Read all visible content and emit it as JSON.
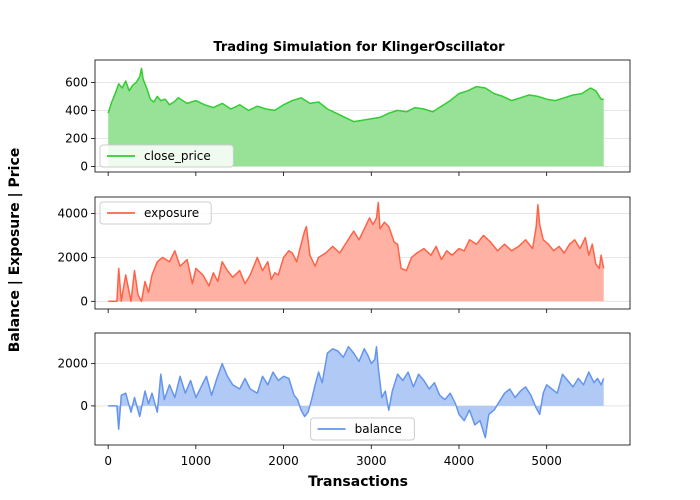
{
  "chart_data": {
    "type": "line",
    "title": "Trading Simulation for KlingerOscillator",
    "xlabel": "Transactions",
    "ylabel": "Balance | Exposure | Price",
    "xlim": [
      -150,
      5950
    ],
    "x_ticks": [
      0,
      1000,
      2000,
      3000,
      4000,
      5000
    ],
    "grid": "horizontal",
    "panels": [
      {
        "series_name": "close_price",
        "color": "#32cd32",
        "fill_color": "#98e298",
        "legend_position": "lower-left",
        "ylim": [
          -40,
          760
        ],
        "y_ticks": [
          0,
          200,
          400,
          600
        ],
        "points": [
          [
            0,
            380
          ],
          [
            40,
            460
          ],
          [
            80,
            520
          ],
          [
            120,
            590
          ],
          [
            160,
            560
          ],
          [
            200,
            610
          ],
          [
            240,
            540
          ],
          [
            280,
            580
          ],
          [
            320,
            600
          ],
          [
            360,
            640
          ],
          [
            380,
            700
          ],
          [
            400,
            620
          ],
          [
            440,
            560
          ],
          [
            480,
            480
          ],
          [
            520,
            460
          ],
          [
            560,
            500
          ],
          [
            600,
            470
          ],
          [
            650,
            480
          ],
          [
            700,
            440
          ],
          [
            750,
            460
          ],
          [
            800,
            490
          ],
          [
            850,
            470
          ],
          [
            900,
            450
          ],
          [
            1000,
            470
          ],
          [
            1100,
            440
          ],
          [
            1200,
            420
          ],
          [
            1300,
            450
          ],
          [
            1400,
            410
          ],
          [
            1500,
            440
          ],
          [
            1600,
            400
          ],
          [
            1700,
            430
          ],
          [
            1800,
            410
          ],
          [
            1900,
            400
          ],
          [
            2000,
            440
          ],
          [
            2100,
            470
          ],
          [
            2200,
            490
          ],
          [
            2300,
            450
          ],
          [
            2400,
            460
          ],
          [
            2500,
            410
          ],
          [
            2600,
            380
          ],
          [
            2700,
            350
          ],
          [
            2800,
            320
          ],
          [
            2900,
            330
          ],
          [
            3000,
            340
          ],
          [
            3100,
            350
          ],
          [
            3200,
            380
          ],
          [
            3300,
            400
          ],
          [
            3400,
            390
          ],
          [
            3500,
            420
          ],
          [
            3600,
            410
          ],
          [
            3700,
            390
          ],
          [
            3800,
            430
          ],
          [
            3900,
            470
          ],
          [
            4000,
            520
          ],
          [
            4100,
            540
          ],
          [
            4200,
            570
          ],
          [
            4300,
            560
          ],
          [
            4400,
            520
          ],
          [
            4500,
            500
          ],
          [
            4600,
            470
          ],
          [
            4700,
            490
          ],
          [
            4800,
            510
          ],
          [
            4900,
            500
          ],
          [
            5000,
            480
          ],
          [
            5100,
            470
          ],
          [
            5200,
            490
          ],
          [
            5300,
            510
          ],
          [
            5400,
            520
          ],
          [
            5500,
            560
          ],
          [
            5560,
            540
          ],
          [
            5620,
            480
          ],
          [
            5650,
            480
          ]
        ]
      },
      {
        "series_name": "exposure",
        "color": "#ff6347",
        "fill_color": "#ffb1a3",
        "legend_position": "upper-left",
        "ylim": [
          -350,
          4750
        ],
        "y_ticks": [
          0,
          2000,
          4000
        ],
        "points": [
          [
            0,
            0
          ],
          [
            100,
            0
          ],
          [
            120,
            1500
          ],
          [
            150,
            0
          ],
          [
            200,
            1200
          ],
          [
            260,
            0
          ],
          [
            300,
            1400
          ],
          [
            340,
            300
          ],
          [
            380,
            0
          ],
          [
            420,
            900
          ],
          [
            460,
            400
          ],
          [
            500,
            1200
          ],
          [
            560,
            1800
          ],
          [
            620,
            2000
          ],
          [
            700,
            1800
          ],
          [
            760,
            2300
          ],
          [
            820,
            1600
          ],
          [
            900,
            1900
          ],
          [
            960,
            800
          ],
          [
            1000,
            1500
          ],
          [
            1080,
            1200
          ],
          [
            1150,
            700
          ],
          [
            1200,
            1300
          ],
          [
            1250,
            900
          ],
          [
            1300,
            1800
          ],
          [
            1360,
            1400
          ],
          [
            1420,
            1100
          ],
          [
            1500,
            1400
          ],
          [
            1560,
            800
          ],
          [
            1620,
            1200
          ],
          [
            1700,
            2000
          ],
          [
            1760,
            1400
          ],
          [
            1820,
            1800
          ],
          [
            1860,
            1000
          ],
          [
            1900,
            1300
          ],
          [
            1940,
            1200
          ],
          [
            2000,
            2000
          ],
          [
            2060,
            2300
          ],
          [
            2100,
            2200
          ],
          [
            2150,
            1800
          ],
          [
            2200,
            2600
          ],
          [
            2240,
            3200
          ],
          [
            2260,
            3400
          ],
          [
            2300,
            2100
          ],
          [
            2360,
            1600
          ],
          [
            2400,
            2000
          ],
          [
            2480,
            2200
          ],
          [
            2560,
            2500
          ],
          [
            2640,
            2200
          ],
          [
            2720,
            2700
          ],
          [
            2800,
            3200
          ],
          [
            2860,
            2800
          ],
          [
            2920,
            3300
          ],
          [
            2980,
            3800
          ],
          [
            3020,
            3500
          ],
          [
            3060,
            3800
          ],
          [
            3080,
            4500
          ],
          [
            3100,
            3300
          ],
          [
            3150,
            3600
          ],
          [
            3200,
            3400
          ],
          [
            3260,
            2700
          ],
          [
            3300,
            2600
          ],
          [
            3340,
            1500
          ],
          [
            3400,
            1400
          ],
          [
            3460,
            2000
          ],
          [
            3520,
            2200
          ],
          [
            3600,
            2400
          ],
          [
            3680,
            2100
          ],
          [
            3740,
            2500
          ],
          [
            3800,
            1900
          ],
          [
            3860,
            2300
          ],
          [
            3920,
            2100
          ],
          [
            4000,
            2400
          ],
          [
            4060,
            2300
          ],
          [
            4120,
            2800
          ],
          [
            4200,
            2600
          ],
          [
            4280,
            3000
          ],
          [
            4360,
            2700
          ],
          [
            4440,
            2300
          ],
          [
            4520,
            2600
          ],
          [
            4600,
            2300
          ],
          [
            4680,
            2500
          ],
          [
            4760,
            2800
          ],
          [
            4840,
            2400
          ],
          [
            4880,
            3400
          ],
          [
            4900,
            4400
          ],
          [
            4920,
            3500
          ],
          [
            4960,
            2800
          ],
          [
            5020,
            2600
          ],
          [
            5080,
            2300
          ],
          [
            5140,
            2500
          ],
          [
            5200,
            2200
          ],
          [
            5260,
            2600
          ],
          [
            5320,
            2800
          ],
          [
            5380,
            2400
          ],
          [
            5440,
            2900
          ],
          [
            5480,
            2100
          ],
          [
            5520,
            2600
          ],
          [
            5560,
            1700
          ],
          [
            5600,
            1500
          ],
          [
            5620,
            2100
          ],
          [
            5650,
            1500
          ]
        ]
      },
      {
        "series_name": "balance",
        "color": "#6495ed",
        "fill_color": "#b1c9f5",
        "legend_position": "lower-center",
        "ylim": [
          -1850,
          3450
        ],
        "y_ticks": [
          0,
          2000
        ],
        "points": [
          [
            0,
            0
          ],
          [
            100,
            0
          ],
          [
            120,
            -1100
          ],
          [
            150,
            500
          ],
          [
            200,
            600
          ],
          [
            260,
            -300
          ],
          [
            300,
            400
          ],
          [
            360,
            -500
          ],
          [
            420,
            700
          ],
          [
            460,
            100
          ],
          [
            500,
            600
          ],
          [
            560,
            -300
          ],
          [
            600,
            1500
          ],
          [
            640,
            300
          ],
          [
            700,
            1000
          ],
          [
            760,
            400
          ],
          [
            820,
            1400
          ],
          [
            880,
            600
          ],
          [
            940,
            1200
          ],
          [
            1000,
            400
          ],
          [
            1060,
            900
          ],
          [
            1120,
            1400
          ],
          [
            1180,
            500
          ],
          [
            1240,
            1300
          ],
          [
            1300,
            2000
          ],
          [
            1360,
            1400
          ],
          [
            1420,
            1000
          ],
          [
            1500,
            800
          ],
          [
            1560,
            1300
          ],
          [
            1620,
            800
          ],
          [
            1700,
            600
          ],
          [
            1760,
            1400
          ],
          [
            1820,
            1000
          ],
          [
            1880,
            1600
          ],
          [
            1940,
            1200
          ],
          [
            2000,
            1400
          ],
          [
            2060,
            1300
          ],
          [
            2120,
            500
          ],
          [
            2160,
            300
          ],
          [
            2200,
            -200
          ],
          [
            2240,
            -500
          ],
          [
            2280,
            -300
          ],
          [
            2320,
            300
          ],
          [
            2360,
            1000
          ],
          [
            2400,
            1600
          ],
          [
            2440,
            1100
          ],
          [
            2500,
            2500
          ],
          [
            2560,
            2700
          ],
          [
            2620,
            2600
          ],
          [
            2680,
            2300
          ],
          [
            2740,
            2800
          ],
          [
            2800,
            2500
          ],
          [
            2860,
            2100
          ],
          [
            2920,
            2700
          ],
          [
            2960,
            2400
          ],
          [
            3000,
            2000
          ],
          [
            3040,
            2200
          ],
          [
            3060,
            2800
          ],
          [
            3080,
            1800
          ],
          [
            3120,
            400
          ],
          [
            3160,
            700
          ],
          [
            3200,
            -200
          ],
          [
            3240,
            700
          ],
          [
            3300,
            1500
          ],
          [
            3360,
            1200
          ],
          [
            3420,
            1600
          ],
          [
            3480,
            900
          ],
          [
            3540,
            1500
          ],
          [
            3600,
            1200
          ],
          [
            3660,
            800
          ],
          [
            3720,
            1100
          ],
          [
            3780,
            500
          ],
          [
            3840,
            300
          ],
          [
            3900,
            600
          ],
          [
            3960,
            100
          ],
          [
            4000,
            -400
          ],
          [
            4060,
            -700
          ],
          [
            4120,
            -200
          ],
          [
            4180,
            -900
          ],
          [
            4240,
            -700
          ],
          [
            4300,
            -1500
          ],
          [
            4340,
            -400
          ],
          [
            4400,
            -200
          ],
          [
            4460,
            200
          ],
          [
            4520,
            600
          ],
          [
            4580,
            800
          ],
          [
            4640,
            400
          ],
          [
            4700,
            700
          ],
          [
            4760,
            900
          ],
          [
            4820,
            500
          ],
          [
            4880,
            -100
          ],
          [
            4920,
            -400
          ],
          [
            4960,
            600
          ],
          [
            5000,
            1000
          ],
          [
            5060,
            800
          ],
          [
            5120,
            600
          ],
          [
            5180,
            1500
          ],
          [
            5240,
            1200
          ],
          [
            5300,
            900
          ],
          [
            5360,
            1300
          ],
          [
            5420,
            1000
          ],
          [
            5480,
            1600
          ],
          [
            5540,
            1100
          ],
          [
            5580,
            1300
          ],
          [
            5620,
            1000
          ],
          [
            5650,
            1300
          ]
        ]
      }
    ]
  }
}
